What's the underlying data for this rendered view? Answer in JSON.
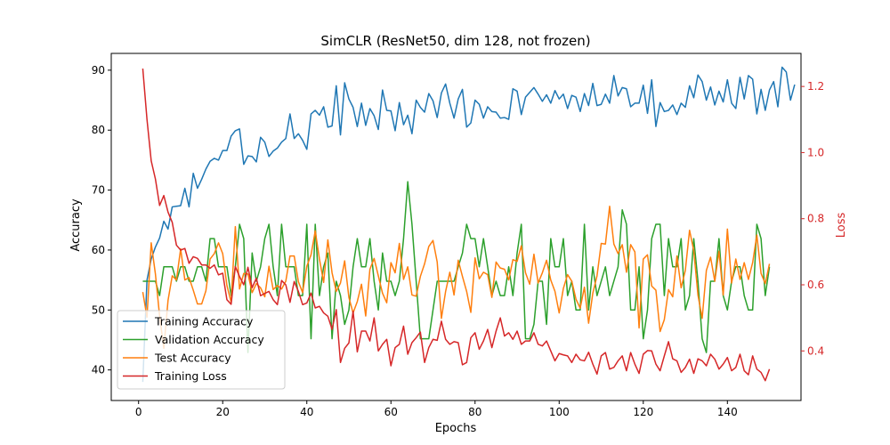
{
  "chart_data": {
    "type": "line",
    "title": "SimCLR (ResNet50, dim 128, not frozen)",
    "xlabel": "Epochs",
    "ylabel_left": "Accuracy",
    "ylabel_right": "Loss",
    "xlim": [
      -6.5,
      157.5
    ],
    "ylim_left": [
      34.9,
      92.8
    ],
    "ylim_right": [
      0.25,
      1.3
    ],
    "xticks": [
      0,
      20,
      40,
      60,
      80,
      100,
      120,
      140
    ],
    "yticks_left": [
      40,
      50,
      60,
      70,
      80,
      90
    ],
    "yticks_right": [
      0.4,
      0.6,
      0.8,
      1.0,
      1.2
    ],
    "grid": false,
    "legend_position": "lower-left",
    "colors": {
      "training_accuracy": "#1f77b4",
      "validation_accuracy": "#2ca02c",
      "test_accuracy": "#ff7f0e",
      "training_loss": "#d62728",
      "right_axis": "#d62728"
    },
    "x": {
      "start": 1,
      "end": 150
    },
    "series": [
      {
        "name": "Training Accuracy",
        "axis": "left",
        "color": "#1f77b4",
        "values": [
          38.0,
          55.0,
          58.5,
          60.5,
          62.0,
          64.8,
          63.5,
          67.2,
          67.3,
          67.4,
          70.3,
          67.2,
          72.8,
          70.3,
          71.8,
          73.5,
          74.8,
          75.3,
          75.0,
          76.6,
          76.6,
          79.0,
          79.9,
          80.2,
          74.3,
          75.7,
          75.6,
          74.7,
          78.8,
          78.0,
          75.6,
          76.5,
          77.0,
          78.0,
          78.6,
          82.7,
          78.6,
          79.4,
          78.3,
          76.8,
          82.7,
          83.3,
          82.5,
          83.9,
          80.5,
          80.7,
          87.4,
          79.2,
          87.9,
          85.2,
          83.8,
          80.6,
          84.5,
          80.8,
          83.6,
          82.4,
          80.1,
          86.7,
          83.3,
          83.2,
          79.9,
          84.6,
          80.9,
          82.5,
          79.4,
          85.0,
          83.8,
          83.0,
          86.1,
          84.9,
          82.1,
          86.2,
          87.7,
          84.5,
          82.0,
          85.2,
          86.8,
          80.5,
          81.2,
          85.0,
          84.3,
          82.0,
          83.9,
          83.1,
          83.0,
          82.0,
          82.1,
          81.8,
          86.9,
          86.5,
          82.6,
          85.5,
          86.3,
          87.1,
          86.0,
          84.8,
          85.9,
          84.5,
          86.6,
          85.2,
          86.0,
          83.6,
          85.8,
          85.5,
          83.1,
          86.1,
          84.1,
          87.8,
          84.1,
          84.3,
          86.0,
          84.5,
          89.1,
          85.7,
          87.1,
          86.9,
          83.9,
          84.5,
          84.5,
          87.5,
          82.8,
          88.4,
          80.6,
          84.6,
          83.1,
          83.3,
          84.2,
          82.6,
          84.5,
          83.8,
          87.4,
          85.4,
          89.2,
          88.1,
          85.0,
          87.2,
          84.2,
          86.5,
          84.7,
          88.4,
          84.5,
          83.6,
          88.8,
          85.2,
          89.1,
          88.5,
          82.7,
          86.8,
          83.3,
          86.7,
          88.1,
          83.9,
          90.5,
          89.7,
          85.0,
          87.6
        ]
      },
      {
        "name": "Validation Accuracy",
        "axis": "left",
        "color": "#2ca02c",
        "values": [
          54.8,
          54.8,
          54.8,
          54.8,
          52.4,
          57.2,
          57.2,
          57.2,
          54.8,
          57.2,
          57.2,
          54.8,
          54.8,
          57.2,
          57.2,
          54.8,
          61.9,
          61.9,
          57.2,
          57.2,
          57.2,
          52.4,
          57.2,
          64.3,
          61.9,
          42.9,
          59.5,
          54.8,
          57.2,
          61.9,
          64.3,
          57.2,
          52.4,
          64.3,
          57.2,
          57.2,
          57.2,
          52.4,
          52.4,
          64.3,
          45.2,
          64.3,
          52.4,
          57.2,
          59.5,
          45.2,
          54.8,
          52.4,
          47.6,
          50.0,
          57.2,
          61.9,
          57.2,
          57.2,
          61.9,
          54.8,
          50.0,
          59.5,
          54.8,
          54.8,
          52.4,
          54.8,
          61.9,
          71.4,
          64.3,
          54.8,
          45.2,
          45.2,
          45.2,
          50.0,
          54.8,
          54.8,
          54.8,
          54.8,
          54.8,
          57.2,
          59.5,
          64.3,
          61.9,
          61.9,
          57.2,
          61.9,
          57.2,
          52.4,
          54.8,
          52.4,
          52.4,
          57.2,
          52.4,
          59.5,
          64.3,
          45.2,
          45.2,
          47.6,
          54.8,
          54.8,
          47.6,
          61.9,
          57.2,
          57.2,
          61.9,
          52.4,
          54.8,
          50.0,
          50.0,
          64.3,
          50.0,
          57.2,
          52.4,
          54.8,
          57.2,
          52.4,
          54.8,
          57.2,
          66.7,
          64.3,
          50.0,
          50.0,
          57.2,
          45.2,
          50.0,
          61.9,
          64.3,
          64.3,
          52.4,
          61.9,
          57.2,
          57.2,
          61.9,
          50.0,
          52.4,
          61.9,
          54.8,
          45.2,
          42.9,
          54.8,
          54.8,
          61.9,
          52.4,
          50.0,
          54.8,
          57.2,
          57.2,
          52.4,
          50.0,
          50.0,
          64.3,
          61.9,
          52.4,
          57.2
        ]
      },
      {
        "name": "Test Accuracy",
        "axis": "left",
        "color": "#ff7f0e",
        "values": [
          53.0,
          48.8,
          61.2,
          56.0,
          49.0,
          43.6,
          51.6,
          55.7,
          55.0,
          60.2,
          55.0,
          55.4,
          53.3,
          51.0,
          51.0,
          53.2,
          58.5,
          59.4,
          61.2,
          59.4,
          54.1,
          51.3,
          63.9,
          53.5,
          56.1,
          56.0,
          52.9,
          54.4,
          53.7,
          52.2,
          57.3,
          53.4,
          54.1,
          53.5,
          54.8,
          59.0,
          59.0,
          54.7,
          52.9,
          57.3,
          59.2,
          63.2,
          58.5,
          54.6,
          61.7,
          56.2,
          53.1,
          54.5,
          58.2,
          52.1,
          49.5,
          51.4,
          54.3,
          49.0,
          56.8,
          58.6,
          55.7,
          52.8,
          51.2,
          57.9,
          56.2,
          61.1,
          55.1,
          57.2,
          52.5,
          52.3,
          55.6,
          57.7,
          60.6,
          61.6,
          58.0,
          48.6,
          53.1,
          56.3,
          52.5,
          58.3,
          55.6,
          53.1,
          49.6,
          58.7,
          55.2,
          56.3,
          55.9,
          52.1,
          58.0,
          57.0,
          56.8,
          55.0,
          58.4,
          58.1,
          60.7,
          56.2,
          54.3,
          59.3,
          54.5,
          56.2,
          58.3,
          55.0,
          53.1,
          49.5,
          53.6,
          55.9,
          54.8,
          51.8,
          50.3,
          53.8,
          47.8,
          52.8,
          55.7,
          61.1,
          61.0,
          67.3,
          61.0,
          59.4,
          60.9,
          56.3,
          60.9,
          59.7,
          47.0,
          58.5,
          59.2,
          54.0,
          53.3,
          46.4,
          48.4,
          53.4,
          52.2,
          59.0,
          53.7,
          56.6,
          63.3,
          59.9,
          52.5,
          48.6,
          56.6,
          58.8,
          54.8,
          59.8,
          52.5,
          63.5,
          54.5,
          58.5,
          55.1,
          57.9,
          55.1,
          57.9,
          62.5,
          56.1,
          54.4,
          57.7
        ]
      },
      {
        "name": "Training Loss",
        "axis": "right",
        "color": "#d62728",
        "values": [
          1.254,
          1.1,
          0.975,
          0.92,
          0.84,
          0.87,
          0.82,
          0.789,
          0.72,
          0.705,
          0.71,
          0.665,
          0.685,
          0.68,
          0.66,
          0.66,
          0.65,
          0.66,
          0.63,
          0.635,
          0.555,
          0.541,
          0.655,
          0.625,
          0.6,
          0.653,
          0.591,
          0.62,
          0.567,
          0.574,
          0.58,
          0.555,
          0.54,
          0.613,
          0.6,
          0.547,
          0.61,
          0.58,
          0.54,
          0.545,
          0.575,
          0.53,
          0.535,
          0.515,
          0.505,
          0.465,
          0.525,
          0.365,
          0.408,
          0.424,
          0.52,
          0.397,
          0.46,
          0.46,
          0.43,
          0.5,
          0.4,
          0.42,
          0.435,
          0.355,
          0.41,
          0.42,
          0.475,
          0.39,
          0.425,
          0.44,
          0.457,
          0.365,
          0.41,
          0.435,
          0.432,
          0.49,
          0.435,
          0.42,
          0.428,
          0.425,
          0.358,
          0.365,
          0.44,
          0.455,
          0.405,
          0.43,
          0.465,
          0.41,
          0.46,
          0.5,
          0.445,
          0.455,
          0.435,
          0.46,
          0.42,
          0.43,
          0.43,
          0.455,
          0.42,
          0.415,
          0.43,
          0.4,
          0.37,
          0.392,
          0.388,
          0.385,
          0.365,
          0.39,
          0.373,
          0.37,
          0.396,
          0.36,
          0.33,
          0.385,
          0.395,
          0.345,
          0.35,
          0.37,
          0.385,
          0.34,
          0.395,
          0.36,
          0.332,
          0.39,
          0.401,
          0.4,
          0.36,
          0.34,
          0.385,
          0.428,
          0.376,
          0.37,
          0.335,
          0.35,
          0.375,
          0.332,
          0.376,
          0.37,
          0.355,
          0.39,
          0.375,
          0.345,
          0.36,
          0.38,
          0.34,
          0.35,
          0.39,
          0.34,
          0.328,
          0.385,
          0.345,
          0.335,
          0.31,
          0.345
        ]
      }
    ]
  }
}
